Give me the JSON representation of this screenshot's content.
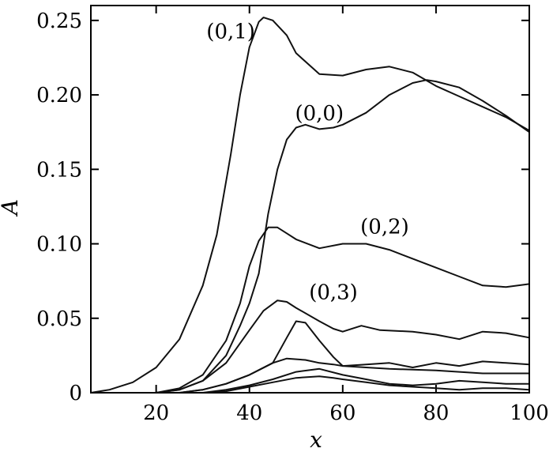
{
  "chart_data": {
    "type": "line",
    "title": "",
    "xlabel": "x",
    "ylabel": "A",
    "xlim": [
      6,
      100
    ],
    "ylim": [
      0,
      0.26
    ],
    "grid": false,
    "x_ticks": [
      20,
      40,
      60,
      80,
      100
    ],
    "y_ticks": [
      0,
      0.05,
      0.1,
      0.15,
      0.2,
      0.25
    ],
    "x_tick_labels": [
      "20",
      "40",
      "60",
      "80",
      "100"
    ],
    "y_tick_labels": [
      "0",
      "0.05",
      "0.10",
      "0.15",
      "0.20",
      "0.25"
    ],
    "series": [
      {
        "name": "(0,1)",
        "label_at": [
          36,
          0.238
        ],
        "x": [
          6,
          10,
          15,
          20,
          25,
          30,
          33,
          36,
          38,
          40,
          42,
          43,
          45,
          48,
          50,
          55,
          60,
          65,
          70,
          75,
          80,
          85,
          90,
          95,
          100
        ],
        "y": [
          0,
          0.002,
          0.007,
          0.017,
          0.036,
          0.072,
          0.106,
          0.16,
          0.2,
          0.232,
          0.249,
          0.252,
          0.25,
          0.24,
          0.228,
          0.214,
          0.213,
          0.217,
          0.219,
          0.215,
          0.206,
          0.199,
          0.192,
          0.185,
          0.176
        ]
      },
      {
        "name": "(0,0)",
        "label_at": [
          55,
          0.183
        ],
        "x": [
          6,
          20,
          25,
          30,
          35,
          38,
          40,
          42,
          44,
          46,
          48,
          50,
          52,
          55,
          58,
          60,
          65,
          70,
          75,
          78,
          80,
          85,
          90,
          95,
          100
        ],
        "y": [
          0,
          0,
          0.002,
          0.008,
          0.025,
          0.045,
          0.06,
          0.08,
          0.12,
          0.15,
          0.17,
          0.178,
          0.18,
          0.177,
          0.178,
          0.18,
          0.188,
          0.2,
          0.208,
          0.21,
          0.209,
          0.205,
          0.196,
          0.186,
          0.175
        ]
      },
      {
        "name": "(0,2)",
        "label_at": [
          69,
          0.107
        ],
        "x": [
          6,
          20,
          25,
          30,
          35,
          38,
          40,
          42,
          44,
          46,
          48,
          50,
          55,
          60,
          65,
          70,
          75,
          80,
          85,
          90,
          95,
          100
        ],
        "y": [
          0,
          0,
          0.003,
          0.012,
          0.035,
          0.06,
          0.085,
          0.102,
          0.111,
          0.111,
          0.107,
          0.103,
          0.097,
          0.1,
          0.1,
          0.096,
          0.09,
          0.084,
          0.078,
          0.072,
          0.071,
          0.073
        ]
      },
      {
        "name": "(0,3)",
        "label_at": [
          58,
          0.063
        ],
        "x": [
          6,
          20,
          25,
          30,
          35,
          40,
          43,
          46,
          48,
          50,
          55,
          58,
          60,
          64,
          68,
          75,
          80,
          85,
          90,
          95,
          100
        ],
        "y": [
          0,
          0,
          0.002,
          0.008,
          0.02,
          0.042,
          0.055,
          0.062,
          0.061,
          0.057,
          0.048,
          0.043,
          0.041,
          0.045,
          0.042,
          0.041,
          0.039,
          0.036,
          0.041,
          0.04,
          0.037
        ]
      },
      {
        "name": "",
        "x": [
          6,
          25,
          30,
          35,
          40,
          45,
          48,
          50,
          52,
          55,
          58,
          60,
          65,
          70,
          80,
          90,
          100
        ],
        "y": [
          0,
          0,
          0.002,
          0.006,
          0.012,
          0.02,
          0.037,
          0.048,
          0.047,
          0.035,
          0.024,
          0.018,
          0.017,
          0.016,
          0.015,
          0.013,
          0.013
        ]
      },
      {
        "name": "",
        "x": [
          6,
          25,
          30,
          35,
          40,
          45,
          48,
          52,
          55,
          58,
          60,
          65,
          70,
          75,
          80,
          85,
          90,
          95,
          100
        ],
        "y": [
          0,
          0,
          0.002,
          0.006,
          0.012,
          0.02,
          0.023,
          0.022,
          0.02,
          0.019,
          0.018,
          0.019,
          0.02,
          0.017,
          0.02,
          0.018,
          0.021,
          0.02,
          0.019
        ]
      },
      {
        "name": "",
        "x": [
          6,
          30,
          35,
          40,
          45,
          50,
          55,
          60,
          65,
          70,
          75,
          80,
          85,
          90,
          95,
          100
        ],
        "y": [
          0,
          0,
          0.002,
          0.005,
          0.009,
          0.014,
          0.016,
          0.012,
          0.009,
          0.006,
          0.005,
          0.006,
          0.008,
          0.007,
          0.006,
          0.006
        ]
      },
      {
        "name": "",
        "x": [
          6,
          30,
          35,
          40,
          45,
          50,
          55,
          58,
          60,
          65,
          70,
          75,
          80,
          85,
          90,
          95,
          100
        ],
        "y": [
          0,
          0,
          0.001,
          0.004,
          0.007,
          0.01,
          0.011,
          0.01,
          0.009,
          0.007,
          0.005,
          0.004,
          0.003,
          0.002,
          0.003,
          0.003,
          0.002
        ]
      }
    ]
  }
}
